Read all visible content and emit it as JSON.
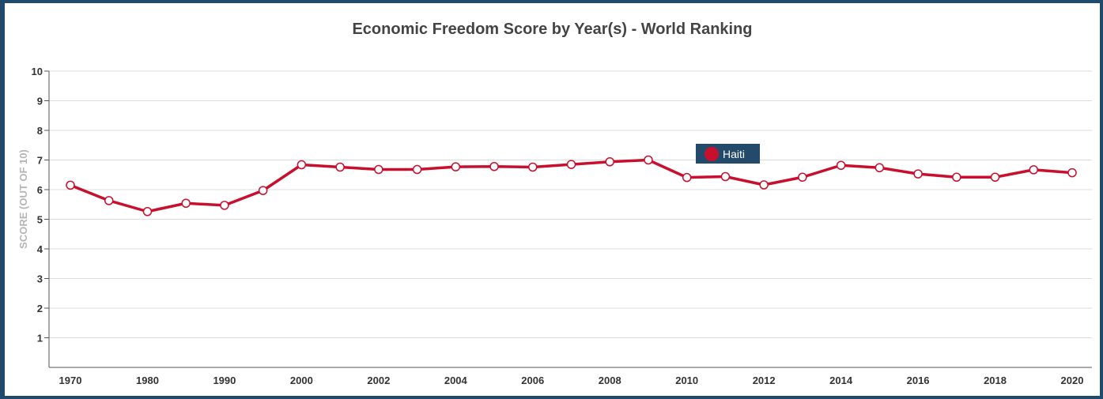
{
  "chart_data": {
    "type": "line",
    "title": "Economic Freedom Score by Year(s) - World Ranking",
    "xlabel": "",
    "ylabel": "SCORE (OUT OF 10)",
    "ylim": [
      0,
      10
    ],
    "yticks": [
      "1",
      "2",
      "3",
      "4",
      "5",
      "6",
      "7",
      "8",
      "9",
      "10"
    ],
    "xtick_labels": [
      "1970",
      "1980",
      "1990",
      "2000",
      "2002",
      "2004",
      "2006",
      "2008",
      "2010",
      "2012",
      "2014",
      "2016",
      "2018",
      "2020"
    ],
    "x": [
      "1970",
      "1975",
      "1980",
      "1985",
      "1990",
      "1995",
      "2000",
      "2001",
      "2002",
      "2003",
      "2004",
      "2005",
      "2006",
      "2007",
      "2008",
      "2009",
      "2010",
      "2011",
      "2012",
      "2013",
      "2014",
      "2015",
      "2016",
      "2017",
      "2018",
      "2019",
      "2020"
    ],
    "series": [
      {
        "name": "Haiti",
        "color": "#c8102e",
        "values": [
          6.15,
          5.63,
          5.26,
          5.54,
          5.47,
          5.97,
          6.84,
          6.76,
          6.68,
          6.68,
          6.77,
          6.78,
          6.76,
          6.85,
          6.94,
          7.0,
          6.41,
          6.44,
          6.16,
          6.42,
          6.82,
          6.74,
          6.53,
          6.42,
          6.42,
          6.67,
          6.57
        ]
      }
    ],
    "grid": true,
    "legend_position": "inside-top-center"
  }
}
